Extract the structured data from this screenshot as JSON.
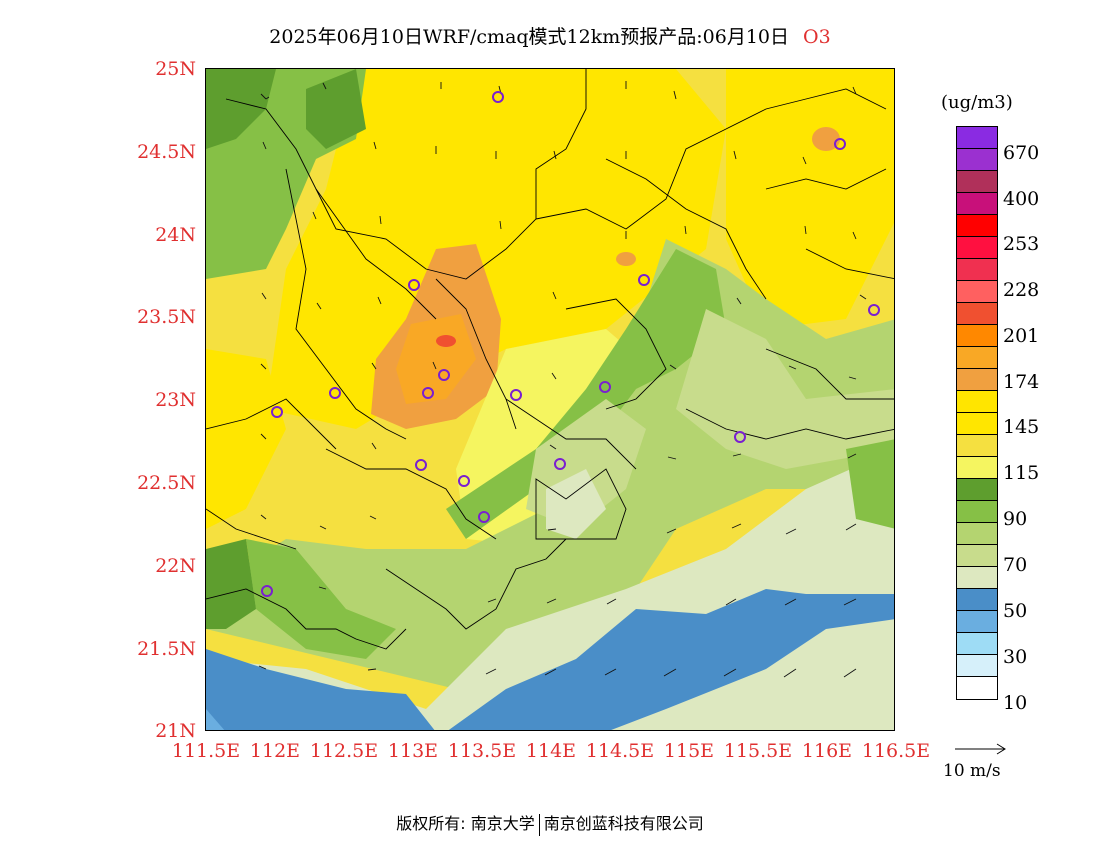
{
  "title": "2025年06月10日WRF/cmaq模式12km预报产品:06月10日",
  "species": "O3",
  "map": {
    "lat_labels": [
      "25N",
      "24.5N",
      "24N",
      "23.5N",
      "23N",
      "22.5N",
      "22N",
      "21.5N",
      "21N"
    ],
    "lon_labels": [
      "111.5E",
      "112E",
      "112.5E",
      "113E",
      "113.5E",
      "114E",
      "114.5E",
      "115E",
      "115.5E",
      "116E",
      "116.5E"
    ]
  },
  "legend": {
    "unit": "(ug/m3)",
    "colors": [
      "#8a2be2",
      "#9b30d0",
      "#b0305a",
      "#c8107a",
      "#ff0000",
      "#ff1040",
      "#f03050",
      "#ff6060",
      "#f05030",
      "#ff8800",
      "#f9a825",
      "#f0a040",
      "#ffe500",
      "#ffe600",
      "#f5e040",
      "#f5f560",
      "#5e9e2e",
      "#86c046",
      "#b4d470",
      "#c8dc8c",
      "#dde8c0",
      "#4a8ec8",
      "#6aaee0",
      "#9edcf5",
      "#d6f0fa",
      "#ffffff"
    ],
    "labels": [
      "670",
      "400",
      "253",
      "228",
      "201",
      "174",
      "145",
      "115",
      "90",
      "70",
      "50",
      "30",
      "10"
    ]
  },
  "vector_ref": "10 m/s",
  "footer": {
    "left": "版权所有: 南京大学",
    "right": "南京创蓝科技有限公司"
  },
  "colors": {
    "axis_label": "#e03030",
    "title_species": "#e03030",
    "station_marker": "#7a1fd0"
  }
}
